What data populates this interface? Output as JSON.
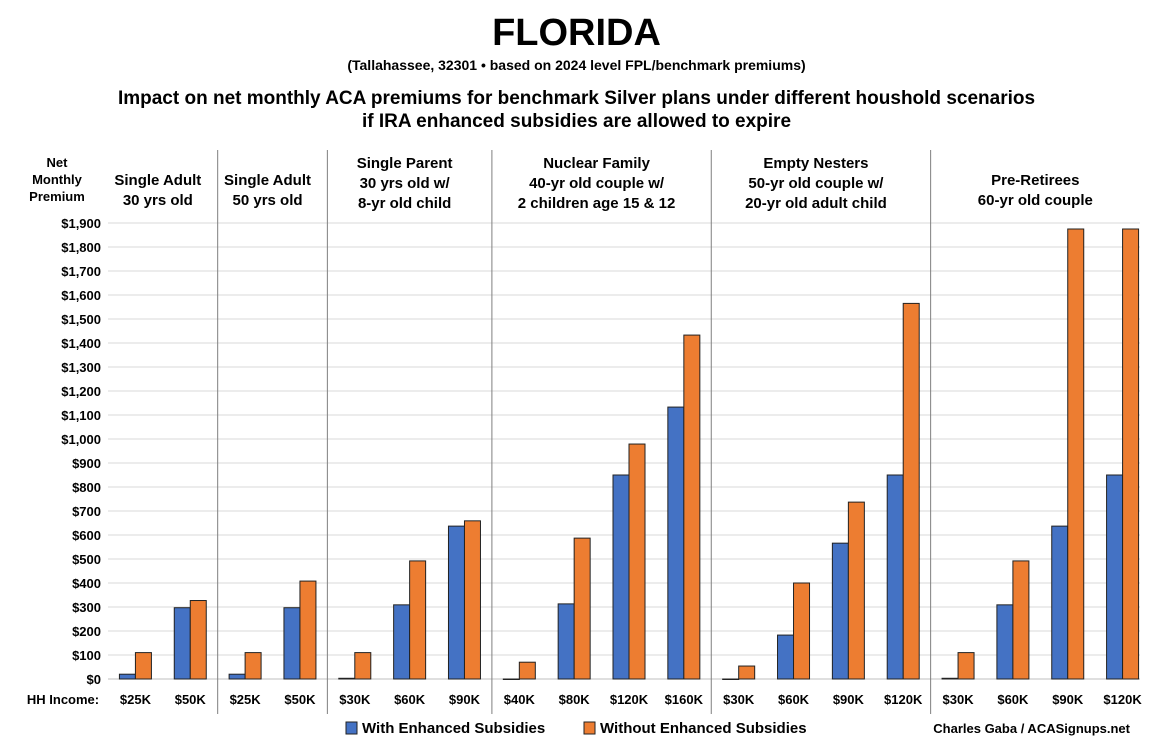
{
  "chart_data": {
    "type": "bar",
    "title": "FLORIDA",
    "subtitle": "(Tallahassee, 32301 • based on 2024 level FPL/benchmark premiums)",
    "heading_lines": [
      "Impact on net monthly ACA premiums for benchmark Silver plans under different houshold scenarios",
      "if IRA enhanced subsidies are allowed to expire"
    ],
    "ylabel_lines": [
      "Net",
      "Monthly",
      "Premium"
    ],
    "xlabel": "HH Income:",
    "ylim": [
      0,
      1900
    ],
    "yticks": [
      "$0",
      "$100",
      "$200",
      "$300",
      "$400",
      "$500",
      "$600",
      "$700",
      "$800",
      "$900",
      "$1,000",
      "$1,100",
      "$1,200",
      "$1,300",
      "$1,400",
      "$1,500",
      "$1,600",
      "$1,700",
      "$1,800",
      "$1,900"
    ],
    "grid": true,
    "legend_placement": "bottom",
    "colors": {
      "with": "#4472C4",
      "without": "#ED7D31"
    },
    "groups": [
      {
        "label": [
          "Single Adult",
          "30 yrs old"
        ],
        "categories": [
          "$25K",
          "$50K"
        ],
        "with": [
          20,
          297
        ],
        "without": [
          110,
          327
        ]
      },
      {
        "label": [
          "Single Adult",
          "50 yrs old"
        ],
        "categories": [
          "$25K",
          "$50K"
        ],
        "with": [
          20,
          297
        ],
        "without": [
          110,
          408
        ]
      },
      {
        "label": [
          "Single Parent",
          "30 yrs old w/",
          "8-yr old child"
        ],
        "categories": [
          "$30K",
          "$60K",
          "$90K"
        ],
        "with": [
          3,
          309,
          637
        ],
        "without": [
          110,
          492,
          659
        ]
      },
      {
        "label": [
          "Nuclear Family",
          "40-yr old couple w/",
          "2 children age 15 & 12"
        ],
        "categories": [
          "$40K",
          "$80K",
          "$120K",
          "$160K"
        ],
        "with": [
          0,
          313,
          850,
          1133
        ],
        "without": [
          70,
          587,
          979,
          1433
        ]
      },
      {
        "label": [
          "Empty Nesters",
          "50-yr old couple w/",
          "20-yr old adult child"
        ],
        "categories": [
          "$30K",
          "$60K",
          "$90K",
          "$120K"
        ],
        "with": [
          0,
          183,
          566,
          850
        ],
        "without": [
          54,
          400,
          737,
          1565
        ]
      },
      {
        "label": [
          "Pre-Retirees",
          "60-yr old couple"
        ],
        "categories": [
          "$30K",
          "$60K",
          "$90K",
          "$120K"
        ],
        "with": [
          3,
          309,
          637,
          850
        ],
        "without": [
          110,
          492,
          1875,
          1875
        ]
      }
    ],
    "series": [
      {
        "name": "With Enhanced Subsidies"
      },
      {
        "name": "Without Enhanced Subsidies"
      }
    ],
    "credit": "Charles Gaba / ACASignups.net"
  }
}
